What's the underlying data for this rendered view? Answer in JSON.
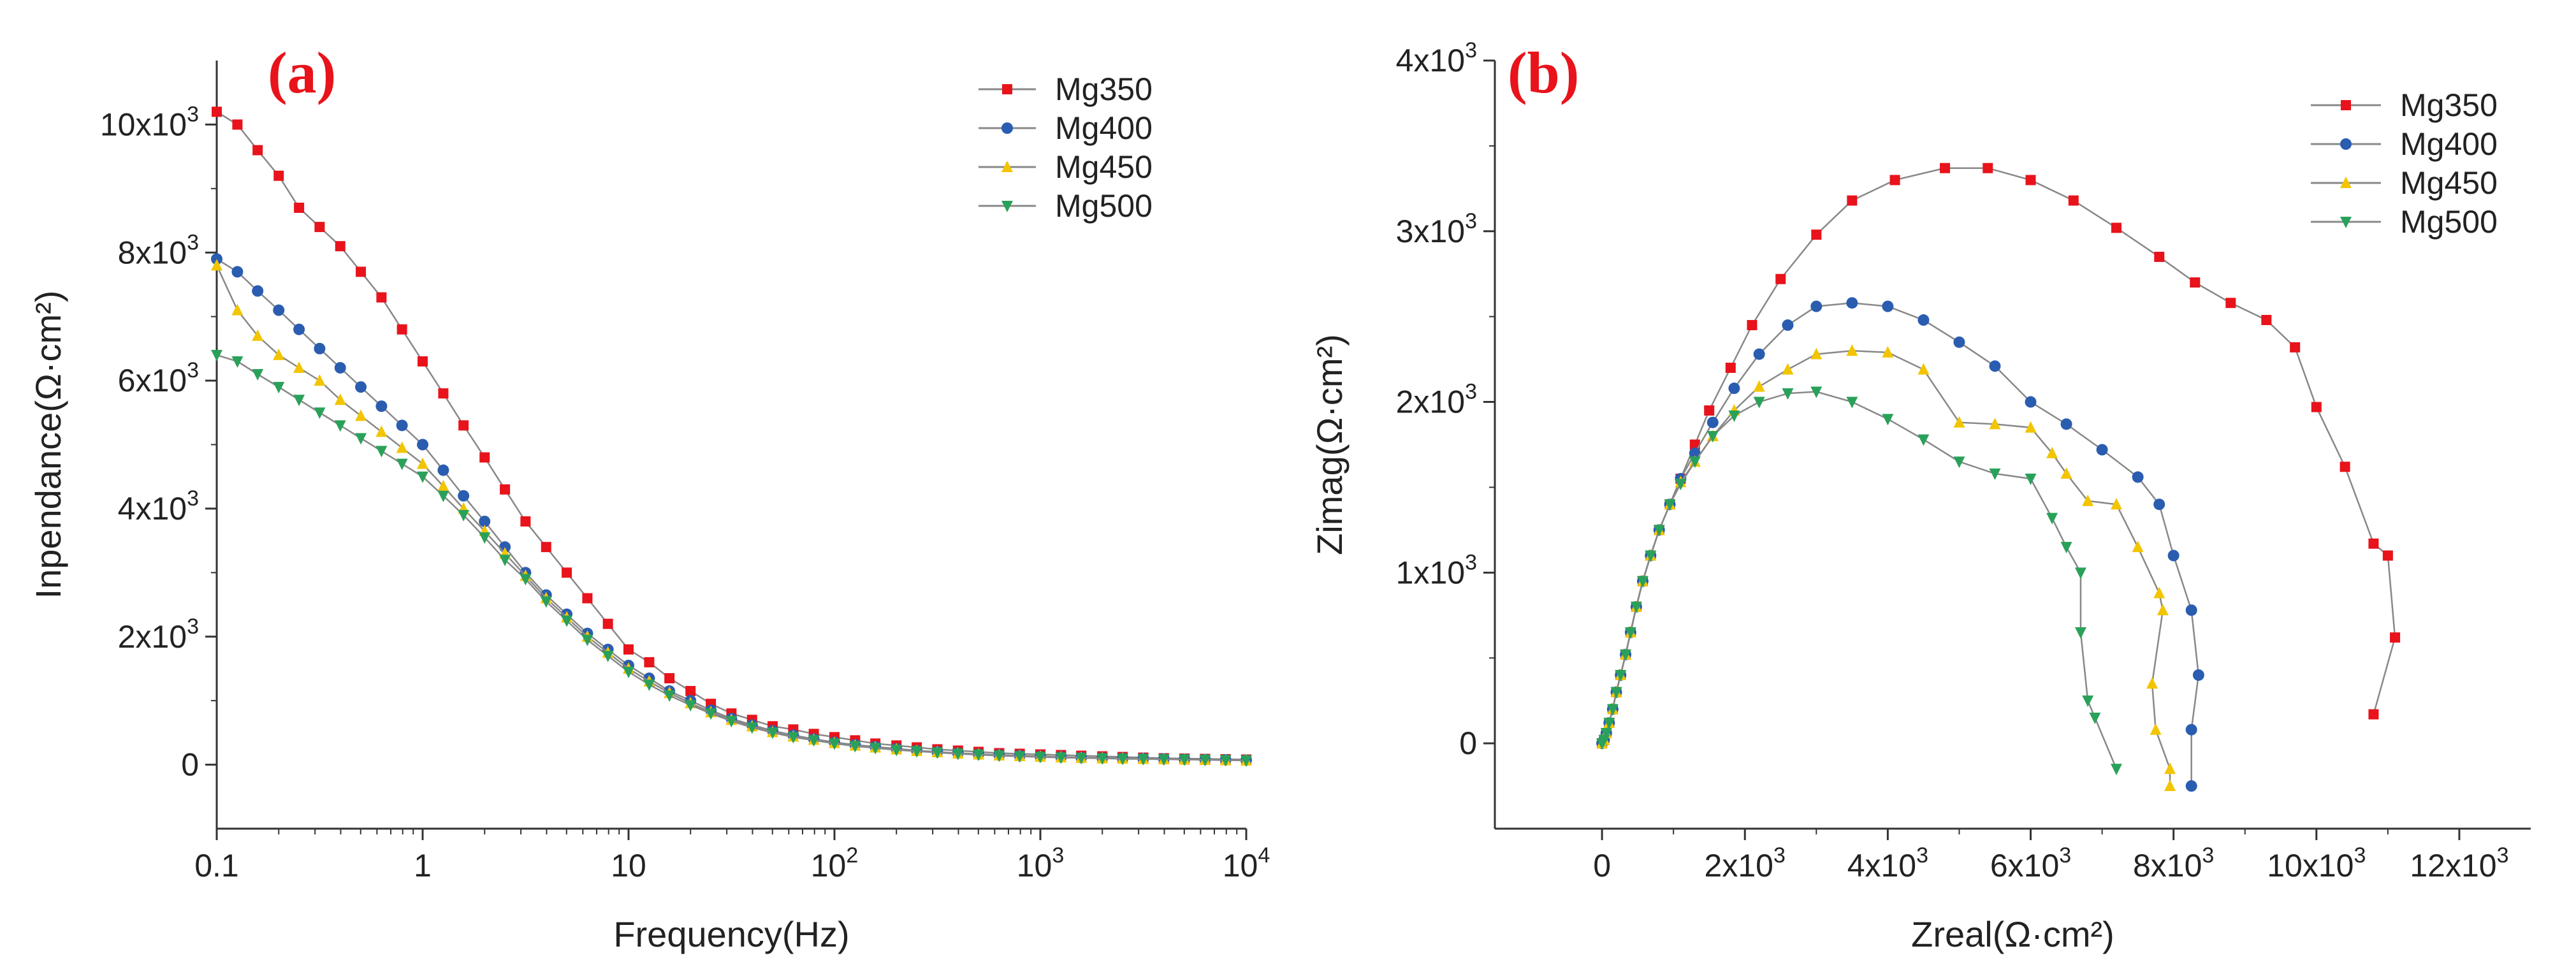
{
  "colors": {
    "Mg350": "#e8131b",
    "Mg400": "#2a5db0",
    "Mg450": "#f2c500",
    "Mg500": "#2aa15a",
    "line": "#888888",
    "axis": "#333333"
  },
  "chart_data": [
    {
      "id": "a",
      "type": "line",
      "panel_label": "(a)",
      "xlabel": "Frequency(Hz)",
      "ylabel": "Inpendance(Ω·cm²)",
      "xscale": "log",
      "xlim": [
        0.1,
        10000
      ],
      "ylim": [
        -1000,
        11000
      ],
      "x_ticks": [
        {
          "value": 0.1,
          "base": "0.1",
          "exp": ""
        },
        {
          "value": 1,
          "base": "1",
          "exp": ""
        },
        {
          "value": 10,
          "base": "10",
          "exp": ""
        },
        {
          "value": 100,
          "base": "10",
          "exp": "2"
        },
        {
          "value": 1000,
          "base": "10",
          "exp": "3"
        },
        {
          "value": 10000,
          "base": "10",
          "exp": "4"
        }
      ],
      "y_ticks": [
        {
          "value": 0,
          "base": "0",
          "exp": ""
        },
        {
          "value": 2000,
          "base": "2x10",
          "exp": "3"
        },
        {
          "value": 4000,
          "base": "4x10",
          "exp": "3"
        },
        {
          "value": 6000,
          "base": "6x10",
          "exp": "3"
        },
        {
          "value": 8000,
          "base": "8x10",
          "exp": "3"
        },
        {
          "value": 10000,
          "base": "10x10",
          "exp": "3"
        }
      ],
      "legend": "top-right",
      "series": [
        {
          "name": "Mg350",
          "marker": "square",
          "x": [
            0.1,
            0.126,
            0.158,
            0.2,
            0.251,
            0.316,
            0.398,
            0.501,
            0.631,
            0.794,
            1,
            1.26,
            1.58,
            2,
            2.51,
            3.16,
            3.98,
            5.01,
            6.31,
            7.94,
            10,
            12.6,
            15.8,
            20,
            25.1,
            31.6,
            39.8,
            50.1,
            63.1,
            79.4,
            100,
            126,
            158,
            200,
            251,
            316,
            398,
            501,
            631,
            794,
            1000,
            1260,
            1580,
            2000,
            2510,
            3160,
            3980,
            5010,
            6310,
            7940,
            10000
          ],
          "y": [
            10200,
            10000,
            9600,
            9200,
            8700,
            8400,
            8100,
            7700,
            7300,
            6800,
            6300,
            5800,
            5300,
            4800,
            4300,
            3800,
            3400,
            3000,
            2600,
            2200,
            1800,
            1600,
            1350,
            1150,
            950,
            800,
            700,
            600,
            550,
            480,
            430,
            380,
            330,
            300,
            270,
            240,
            220,
            200,
            180,
            170,
            160,
            150,
            140,
            130,
            120,
            110,
            100,
            95,
            90,
            85,
            80
          ]
        },
        {
          "name": "Mg400",
          "marker": "circle",
          "x": [
            0.1,
            0.126,
            0.158,
            0.2,
            0.251,
            0.316,
            0.398,
            0.501,
            0.631,
            0.794,
            1,
            1.26,
            1.58,
            2,
            2.51,
            3.16,
            3.98,
            5.01,
            6.31,
            7.94,
            10,
            12.6,
            15.8,
            20,
            25.1,
            31.6,
            39.8,
            50.1,
            63.1,
            79.4,
            100,
            126,
            158,
            200,
            251,
            316,
            398,
            501,
            631,
            794,
            1000,
            1260,
            1580,
            2000,
            2510,
            3160,
            3980,
            5010,
            6310,
            7940,
            10000
          ],
          "y": [
            7900,
            7700,
            7400,
            7100,
            6800,
            6500,
            6200,
            5900,
            5600,
            5300,
            5000,
            4600,
            4200,
            3800,
            3400,
            3000,
            2650,
            2350,
            2050,
            1800,
            1550,
            1350,
            1150,
            1000,
            850,
            720,
            620,
            530,
            460,
            400,
            350,
            310,
            280,
            250,
            220,
            200,
            180,
            165,
            150,
            140,
            130,
            120,
            110,
            105,
            100,
            95,
            90,
            85,
            80,
            75,
            70
          ]
        },
        {
          "name": "Mg450",
          "marker": "triangle-up",
          "x": [
            0.1,
            0.126,
            0.158,
            0.2,
            0.251,
            0.316,
            0.398,
            0.501,
            0.631,
            0.794,
            1,
            1.26,
            1.58,
            2,
            2.51,
            3.16,
            3.98,
            5.01,
            6.31,
            7.94,
            10,
            12.6,
            15.8,
            20,
            25.1,
            31.6,
            39.8,
            50.1,
            63.1,
            79.4,
            100,
            126,
            158,
            200,
            251,
            316,
            398,
            501,
            631,
            794,
            1000,
            1260,
            1580,
            2000,
            2510,
            3160,
            3980,
            5010,
            6310,
            7940,
            10000
          ],
          "y": [
            7800,
            7100,
            6700,
            6400,
            6200,
            6000,
            5700,
            5450,
            5200,
            4950,
            4700,
            4350,
            4000,
            3650,
            3300,
            2950,
            2600,
            2300,
            2000,
            1750,
            1500,
            1300,
            1120,
            960,
            820,
            700,
            600,
            510,
            440,
            390,
            340,
            300,
            270,
            240,
            215,
            195,
            175,
            160,
            145,
            135,
            125,
            115,
            108,
            100,
            95,
            90,
            85,
            80,
            75,
            70,
            65
          ]
        },
        {
          "name": "Mg500",
          "marker": "triangle-down",
          "x": [
            0.1,
            0.126,
            0.158,
            0.2,
            0.251,
            0.316,
            0.398,
            0.501,
            0.631,
            0.794,
            1,
            1.26,
            1.58,
            2,
            2.51,
            3.16,
            3.98,
            5.01,
            6.31,
            7.94,
            10,
            12.6,
            15.8,
            20,
            25.1,
            31.6,
            39.8,
            50.1,
            63.1,
            79.4,
            100,
            126,
            158,
            200,
            251,
            316,
            398,
            501,
            631,
            794,
            1000,
            1260,
            1580,
            2000,
            2510,
            3160,
            3980,
            5010,
            6310,
            7940,
            10000
          ],
          "y": [
            6400,
            6300,
            6100,
            5900,
            5700,
            5500,
            5300,
            5100,
            4900,
            4700,
            4500,
            4200,
            3900,
            3550,
            3200,
            2900,
            2550,
            2250,
            1950,
            1700,
            1450,
            1250,
            1080,
            930,
            800,
            680,
            580,
            500,
            430,
            380,
            330,
            290,
            260,
            230,
            210,
            190,
            170,
            155,
            140,
            130,
            120,
            110,
            105,
            98,
            92,
            88,
            84,
            80,
            75,
            70,
            65
          ]
        }
      ]
    },
    {
      "id": "b",
      "type": "line",
      "panel_label": "(b)",
      "xlabel": "Zreal(Ω·cm²)",
      "ylabel": "Zimag(Ω·cm²)",
      "xlim": [
        -1500,
        13000
      ],
      "ylim": [
        -500,
        4000
      ],
      "x_ticks": [
        {
          "value": 0,
          "base": "0",
          "exp": ""
        },
        {
          "value": 2000,
          "base": "2x10",
          "exp": "3"
        },
        {
          "value": 4000,
          "base": "4x10",
          "exp": "3"
        },
        {
          "value": 6000,
          "base": "6x10",
          "exp": "3"
        },
        {
          "value": 8000,
          "base": "8x10",
          "exp": "3"
        },
        {
          "value": 10000,
          "base": "10x10",
          "exp": "3"
        },
        {
          "value": 12000,
          "base": "12x10",
          "exp": "3"
        }
      ],
      "y_ticks": [
        {
          "value": 0,
          "base": "0",
          "exp": ""
        },
        {
          "value": 1000,
          "base": "1x10",
          "exp": "3"
        },
        {
          "value": 2000,
          "base": "2x10",
          "exp": "3"
        },
        {
          "value": 3000,
          "base": "3x10",
          "exp": "3"
        },
        {
          "value": 4000,
          "base": "4x10",
          "exp": "3"
        }
      ],
      "legend": "top-right",
      "series": [
        {
          "name": "Mg350",
          "marker": "square",
          "x": [
            0,
            30,
            60,
            100,
            150,
            200,
            260,
            330,
            400,
            480,
            570,
            680,
            800,
            950,
            1100,
            1300,
            1500,
            1800,
            2100,
            2500,
            3000,
            3500,
            4100,
            4800,
            5400,
            6000,
            6600,
            7200,
            7800,
            8300,
            8800,
            9300,
            9700,
            10000,
            10400,
            10800,
            11000,
            11100,
            10800
          ],
          "y": [
            0,
            20,
            60,
            120,
            200,
            300,
            400,
            520,
            650,
            800,
            950,
            1100,
            1250,
            1400,
            1550,
            1750,
            1950,
            2200,
            2450,
            2720,
            2980,
            3180,
            3300,
            3370,
            3370,
            3300,
            3180,
            3020,
            2850,
            2700,
            2580,
            2480,
            2320,
            1970,
            1620,
            1170,
            1100,
            620,
            170
          ]
        },
        {
          "name": "Mg400",
          "marker": "circle",
          "x": [
            0,
            30,
            60,
            100,
            150,
            200,
            260,
            330,
            400,
            480,
            570,
            680,
            800,
            950,
            1100,
            1300,
            1550,
            1850,
            2200,
            2600,
            3000,
            3500,
            4000,
            4500,
            5000,
            5500,
            6000,
            6500,
            7000,
            7500,
            7800,
            8000,
            8250,
            8350,
            8250,
            8250
          ],
          "y": [
            0,
            20,
            60,
            120,
            200,
            300,
            400,
            520,
            650,
            800,
            950,
            1100,
            1250,
            1400,
            1550,
            1700,
            1880,
            2080,
            2280,
            2450,
            2560,
            2580,
            2560,
            2480,
            2350,
            2210,
            2000,
            1870,
            1720,
            1560,
            1400,
            1100,
            780,
            400,
            80,
            -250
          ]
        },
        {
          "name": "Mg450",
          "marker": "triangle-up",
          "x": [
            0,
            30,
            60,
            100,
            150,
            200,
            260,
            330,
            400,
            480,
            570,
            680,
            800,
            950,
            1100,
            1300,
            1550,
            1850,
            2200,
            2600,
            3000,
            3500,
            4000,
            4500,
            5000,
            5500,
            6000,
            6300,
            6500,
            6800,
            7200,
            7500,
            7800,
            7850,
            7700,
            7750,
            7950,
            7950
          ],
          "y": [
            0,
            20,
            60,
            120,
            200,
            300,
            400,
            520,
            650,
            800,
            950,
            1100,
            1250,
            1400,
            1530,
            1650,
            1800,
            1950,
            2090,
            2190,
            2280,
            2300,
            2290,
            2190,
            1880,
            1870,
            1850,
            1700,
            1580,
            1420,
            1400,
            1150,
            880,
            780,
            350,
            80,
            -150,
            -250
          ]
        },
        {
          "name": "Mg500",
          "marker": "triangle-down",
          "x": [
            0,
            30,
            60,
            100,
            150,
            200,
            260,
            330,
            400,
            480,
            570,
            680,
            800,
            950,
            1100,
            1300,
            1550,
            1850,
            2200,
            2600,
            3000,
            3500,
            4000,
            4500,
            5000,
            5500,
            6000,
            6300,
            6500,
            6700,
            6700,
            6800,
            6900,
            7200
          ],
          "y": [
            0,
            20,
            60,
            120,
            200,
            300,
            400,
            520,
            650,
            800,
            950,
            1100,
            1250,
            1400,
            1520,
            1650,
            1800,
            1920,
            2000,
            2050,
            2060,
            2000,
            1900,
            1780,
            1650,
            1580,
            1550,
            1320,
            1150,
            1000,
            650,
            250,
            150,
            -150
          ]
        }
      ]
    }
  ]
}
